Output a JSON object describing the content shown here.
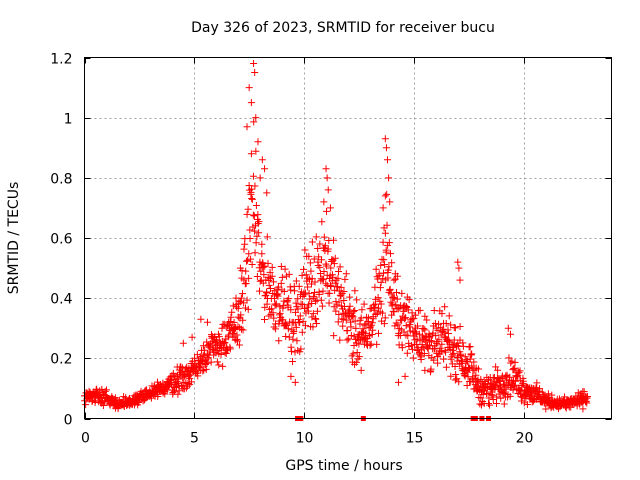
{
  "chart_data": {
    "type": "scatter",
    "title": "Day 326 of 2023, SRMTID for receiver bucu",
    "xlabel": "GPS time / hours",
    "ylabel": "SRMTID / TECUs",
    "xlim": [
      0,
      24
    ],
    "ylim": [
      0,
      1.2
    ],
    "x_ticks": [
      0,
      5,
      10,
      15,
      20
    ],
    "x_tick_labels": [
      "0",
      "5",
      "10",
      "15",
      "20"
    ],
    "y_ticks": [
      0,
      0.2,
      0.4,
      0.6,
      0.8,
      1.0,
      1.2
    ],
    "y_tick_labels": [
      "0",
      "0.2",
      "0.4",
      "0.6",
      "0.8",
      "1",
      "1.2"
    ],
    "grid": true,
    "marker": "+",
    "series": [
      {
        "name": "SRMTID",
        "color": "#ff0000",
        "profile": [
          [
            0.0,
            0.07,
            0.02
          ],
          [
            0.5,
            0.08,
            0.02
          ],
          [
            1.0,
            0.07,
            0.02
          ],
          [
            1.5,
            0.05,
            0.015
          ],
          [
            2.0,
            0.05,
            0.015
          ],
          [
            2.5,
            0.07,
            0.02
          ],
          [
            3.0,
            0.08,
            0.02
          ],
          [
            3.5,
            0.1,
            0.025
          ],
          [
            4.0,
            0.12,
            0.03
          ],
          [
            4.5,
            0.14,
            0.04
          ],
          [
            5.0,
            0.16,
            0.04
          ],
          [
            5.5,
            0.22,
            0.05
          ],
          [
            6.0,
            0.24,
            0.05
          ],
          [
            6.5,
            0.26,
            0.06
          ],
          [
            7.0,
            0.32,
            0.08
          ],
          [
            7.3,
            0.45,
            0.12
          ],
          [
            7.5,
            0.6,
            0.15
          ],
          [
            7.7,
            0.7,
            0.2
          ],
          [
            8.0,
            0.5,
            0.12
          ],
          [
            8.5,
            0.42,
            0.1
          ],
          [
            9.0,
            0.38,
            0.1
          ],
          [
            9.5,
            0.32,
            0.1
          ],
          [
            10.0,
            0.4,
            0.12
          ],
          [
            10.5,
            0.45,
            0.12
          ],
          [
            11.0,
            0.55,
            0.14
          ],
          [
            11.5,
            0.4,
            0.1
          ],
          [
            12.0,
            0.35,
            0.1
          ],
          [
            12.5,
            0.26,
            0.08
          ],
          [
            13.0,
            0.3,
            0.08
          ],
          [
            13.5,
            0.45,
            0.12
          ],
          [
            13.8,
            0.55,
            0.15
          ],
          [
            14.0,
            0.4,
            0.1
          ],
          [
            14.5,
            0.32,
            0.08
          ],
          [
            15.0,
            0.3,
            0.08
          ],
          [
            15.5,
            0.26,
            0.08
          ],
          [
            16.0,
            0.24,
            0.08
          ],
          [
            16.5,
            0.26,
            0.08
          ],
          [
            17.0,
            0.22,
            0.07
          ],
          [
            17.5,
            0.18,
            0.06
          ],
          [
            18.0,
            0.1,
            0.04
          ],
          [
            18.5,
            0.1,
            0.04
          ],
          [
            19.0,
            0.12,
            0.05
          ],
          [
            19.5,
            0.14,
            0.05
          ],
          [
            20.0,
            0.1,
            0.04
          ],
          [
            20.5,
            0.08,
            0.03
          ],
          [
            21.0,
            0.06,
            0.02
          ],
          [
            21.5,
            0.05,
            0.015
          ],
          [
            22.0,
            0.05,
            0.015
          ],
          [
            22.5,
            0.06,
            0.02
          ],
          [
            22.9,
            0.07,
            0.02
          ]
        ],
        "highlight_points": [
          [
            7.4,
            0.97
          ],
          [
            7.5,
            1.1
          ],
          [
            7.6,
            1.05
          ],
          [
            7.7,
            1.18
          ],
          [
            7.75,
            1.15
          ],
          [
            7.8,
            1.0
          ],
          [
            7.9,
            0.92
          ],
          [
            7.6,
            0.88
          ],
          [
            8.1,
            0.86
          ],
          [
            8.2,
            0.83
          ],
          [
            8.3,
            0.75
          ],
          [
            8.0,
            0.8
          ],
          [
            11.0,
            0.83
          ],
          [
            11.05,
            0.8
          ],
          [
            11.1,
            0.76
          ],
          [
            10.9,
            0.72
          ],
          [
            11.2,
            0.7
          ],
          [
            13.7,
            0.93
          ],
          [
            13.75,
            0.9
          ],
          [
            13.8,
            0.86
          ],
          [
            13.85,
            0.8
          ],
          [
            13.7,
            0.74
          ],
          [
            13.6,
            0.7
          ],
          [
            13.9,
            0.72
          ],
          [
            17.0,
            0.52
          ],
          [
            17.05,
            0.5
          ],
          [
            17.1,
            0.46
          ],
          [
            19.3,
            0.3
          ],
          [
            19.4,
            0.28
          ],
          [
            4.5,
            0.25
          ],
          [
            4.9,
            0.27
          ],
          [
            5.3,
            0.33
          ],
          [
            5.6,
            0.32
          ],
          [
            6.9,
            0.4
          ],
          [
            7.1,
            0.5
          ],
          [
            9.6,
            0.12
          ],
          [
            9.4,
            0.14
          ],
          [
            12.3,
            0.18
          ],
          [
            12.6,
            0.16
          ],
          [
            14.3,
            0.12
          ],
          [
            14.6,
            0.14
          ],
          [
            15.5,
            0.16
          ],
          [
            18.2,
            0.05
          ],
          [
            18.4,
            0.05
          ]
        ],
        "zero_points": [
          9.7,
          9.8,
          9.85,
          12.7,
          17.7,
          17.8,
          18.1,
          18.4
        ]
      }
    ]
  }
}
